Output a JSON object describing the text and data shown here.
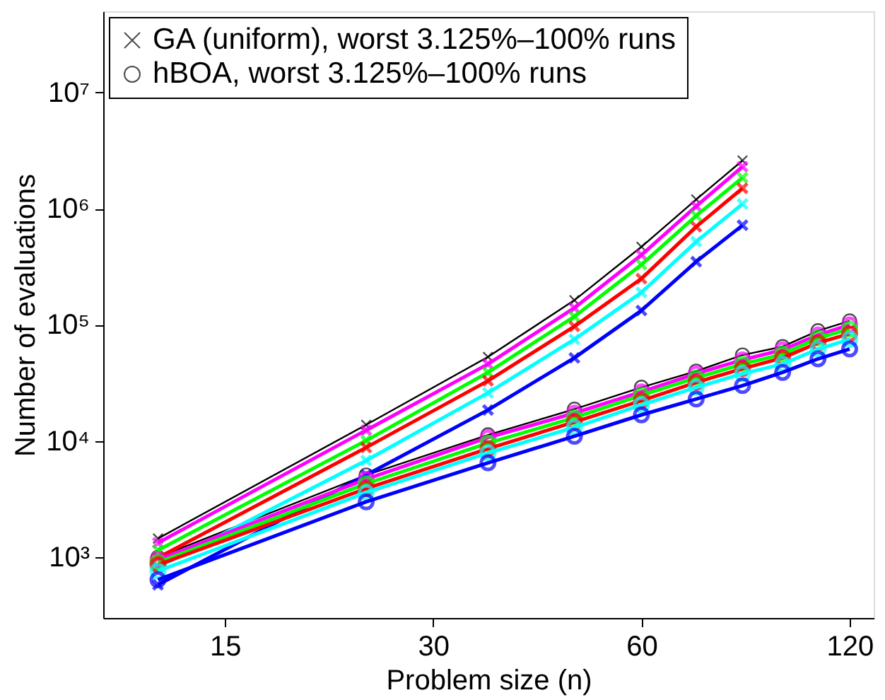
{
  "chart_data": {
    "type": "line",
    "xlabel": "Problem size (n)",
    "ylabel": "Number of evaluations",
    "log": "xy",
    "grid": false,
    "legend": "top left",
    "line_style": "solid",
    "xlim": [
      10,
      130
    ],
    "xticks": [
      15,
      30,
      60,
      120
    ],
    "ylim": [
      300,
      50000000
    ],
    "yticks": [
      {
        "value": 1000,
        "label": "10³"
      },
      {
        "value": 10000,
        "label": "10⁴"
      },
      {
        "value": 100000,
        "label": "10⁵"
      },
      {
        "value": 1000000,
        "label": "10⁶"
      },
      {
        "value": 10000000,
        "label": "10⁷"
      }
    ],
    "series": [
      {
        "name": "GA (uniform), worst 3.125%–100% runs",
        "color": "#000000",
        "marker": "cross",
        "x": [
          12,
          24,
          36,
          48,
          60,
          72,
          84
        ],
        "values": [
          1450,
          13800,
          53000,
          163000,
          470000,
          1200000,
          2600000
        ]
      },
      {
        "name": "hBOA, worst 3.125%–100% runs",
        "color": "#000000",
        "marker": "circle",
        "x": [
          12,
          24,
          36,
          48,
          60,
          72,
          84,
          96,
          108,
          120
        ],
        "values": [
          1000,
          5100,
          11300,
          18800,
          29000,
          40000,
          55000,
          65000,
          89000,
          108000
        ]
      },
      {
        "color": "#ff00ff",
        "marker": "cross",
        "x": [
          12,
          24,
          36,
          48,
          60,
          72,
          84
        ],
        "values": [
          1330,
          12400,
          46000,
          140000,
          400000,
          1050000,
          2300000
        ]
      },
      {
        "color": "#00ff00",
        "marker": "cross",
        "x": [
          12,
          24,
          36,
          48,
          60,
          72,
          84
        ],
        "values": [
          1150,
          10100,
          39000,
          118000,
          330000,
          870000,
          1850000
        ]
      },
      {
        "color": "#ff0000",
        "marker": "cross",
        "x": [
          12,
          24,
          36,
          48,
          60,
          72,
          84
        ],
        "values": [
          990,
          8800,
          33000,
          97000,
          250000,
          700000,
          1500000
        ]
      },
      {
        "color": "#00ffff",
        "marker": "cross",
        "x": [
          12,
          24,
          36,
          48,
          60,
          72,
          84
        ],
        "values": [
          820,
          6800,
          26000,
          75000,
          190000,
          520000,
          1100000
        ]
      },
      {
        "color": "#0000ff",
        "marker": "cross",
        "x": [
          12,
          24,
          36,
          48,
          60,
          72,
          84
        ],
        "values": [
          580,
          5100,
          18500,
          52000,
          133000,
          350000,
          720000
        ]
      },
      {
        "color": "#ff00ff",
        "marker": "circle",
        "x": [
          12,
          24,
          36,
          48,
          60,
          72,
          84,
          96,
          108,
          120
        ],
        "values": [
          950,
          4700,
          10700,
          17400,
          26500,
          38000,
          50000,
          61000,
          82000,
          100000
        ]
      },
      {
        "color": "#00ff00",
        "marker": "circle",
        "x": [
          12,
          24,
          36,
          48,
          60,
          72,
          84,
          96,
          108,
          120
        ],
        "values": [
          900,
          4300,
          9600,
          15900,
          24800,
          35000,
          46000,
          56000,
          77000,
          92000
        ]
      },
      {
        "color": "#ff0000",
        "marker": "circle",
        "x": [
          12,
          24,
          36,
          48,
          60,
          72,
          84,
          96,
          108,
          120
        ],
        "values": [
          860,
          3900,
          8600,
          14600,
          22300,
          32000,
          42000,
          52000,
          70000,
          84000
        ]
      },
      {
        "color": "#00ffff",
        "marker": "circle",
        "x": [
          12,
          24,
          36,
          48,
          60,
          72,
          84,
          96,
          108,
          120
        ],
        "values": [
          760,
          3600,
          7900,
          13100,
          20500,
          29000,
          38000,
          46000,
          62000,
          75000
        ]
      },
      {
        "color": "#0000ff",
        "marker": "circle",
        "x": [
          12,
          24,
          36,
          48,
          60,
          72,
          84,
          96,
          108,
          120
        ],
        "values": [
          640,
          3000,
          6500,
          11000,
          16800,
          23000,
          30000,
          39000,
          51000,
          62000
        ]
      }
    ]
  }
}
